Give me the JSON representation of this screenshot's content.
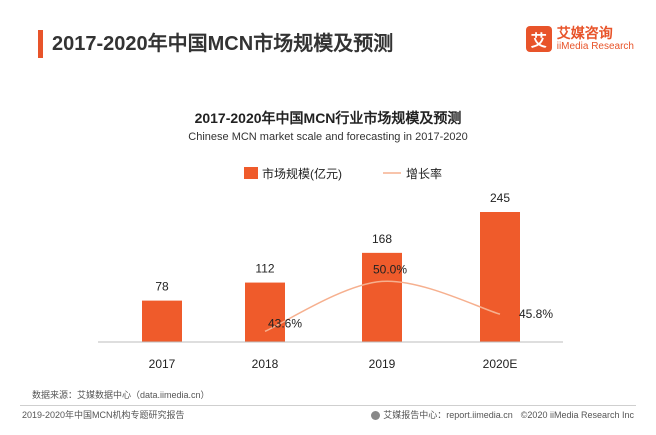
{
  "page": {
    "title": "2017-2020年中国MCN市场规模及预测",
    "accent_color": "#e8542a"
  },
  "brand": {
    "mark": "艾",
    "name_cn": "艾媒咨询",
    "name_en": "iiMedia Research"
  },
  "chart_data": {
    "type": "bar",
    "title": "2017-2020年中国MCN行业市场规模及预测",
    "subtitle": "Chinese MCN market scale and forecasting in 2017-2020",
    "categories": [
      "2017",
      "2018",
      "2019",
      "2020E"
    ],
    "series": [
      {
        "name": "市场规模(亿元)",
        "type": "bar",
        "values": [
          78,
          112,
          168,
          245
        ],
        "labels": [
          "78",
          "112",
          "168",
          "245"
        ],
        "color": "#ef5b2b"
      },
      {
        "name": "增长率",
        "type": "line",
        "values": [
          null,
          43.6,
          50.0,
          45.8
        ],
        "labels": [
          "",
          "43.6%",
          "50.0%",
          "45.8%"
        ],
        "color": "#f6b08f"
      }
    ],
    "legend_position": "top-center",
    "grid": false
  },
  "source": "数据来源：艾媒数据中心（data.iimedia.cn）",
  "footer": {
    "left": "2019-2020年中国MCN机构专题研究报告",
    "right_center": "艾媒报告中心：report.iimedia.cn",
    "right_copyright": "©2020  iiMedia Research  Inc"
  }
}
